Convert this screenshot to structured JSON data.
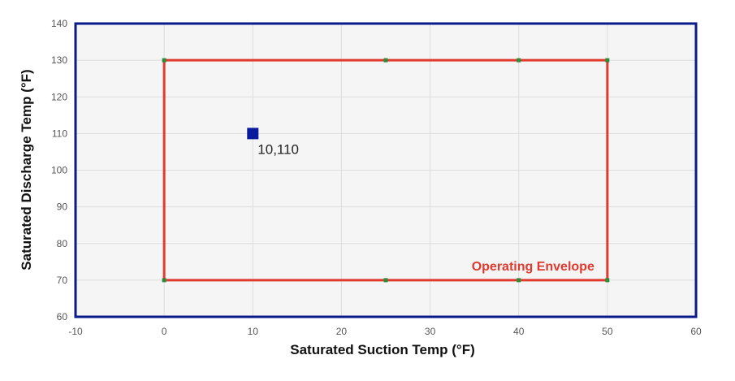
{
  "chart_data": {
    "type": "scatter",
    "xlabel": "Saturated Suction Temp (°F)",
    "ylabel": "Saturated Discharge Temp (°F)",
    "xlim": [
      -10,
      60
    ],
    "ylim": [
      60,
      140
    ],
    "x_ticks": [
      "-10",
      "0",
      "10",
      "20",
      "30",
      "40",
      "50",
      "60"
    ],
    "y_ticks": [
      "60",
      "70",
      "80",
      "90",
      "100",
      "110",
      "120",
      "130",
      "140"
    ],
    "grid": true,
    "envelope": {
      "label": "Operating Envelope",
      "color": "#e03a2f",
      "vertex_color": "#2e8b3a",
      "points": [
        {
          "x": 0,
          "y": 70
        },
        {
          "x": 25,
          "y": 70
        },
        {
          "x": 40,
          "y": 70
        },
        {
          "x": 50,
          "y": 70
        },
        {
          "x": 50,
          "y": 130
        },
        {
          "x": 40,
          "y": 130
        },
        {
          "x": 25,
          "y": 130
        },
        {
          "x": 0,
          "y": 130
        }
      ]
    },
    "operating_point": {
      "x": 10,
      "y": 110,
      "label": "10,110",
      "color": "#0a1a9c"
    },
    "colors": {
      "plot_background": "#f5f5f5",
      "plot_border": "#0a1a8a",
      "grid": "#dddddd"
    }
  }
}
